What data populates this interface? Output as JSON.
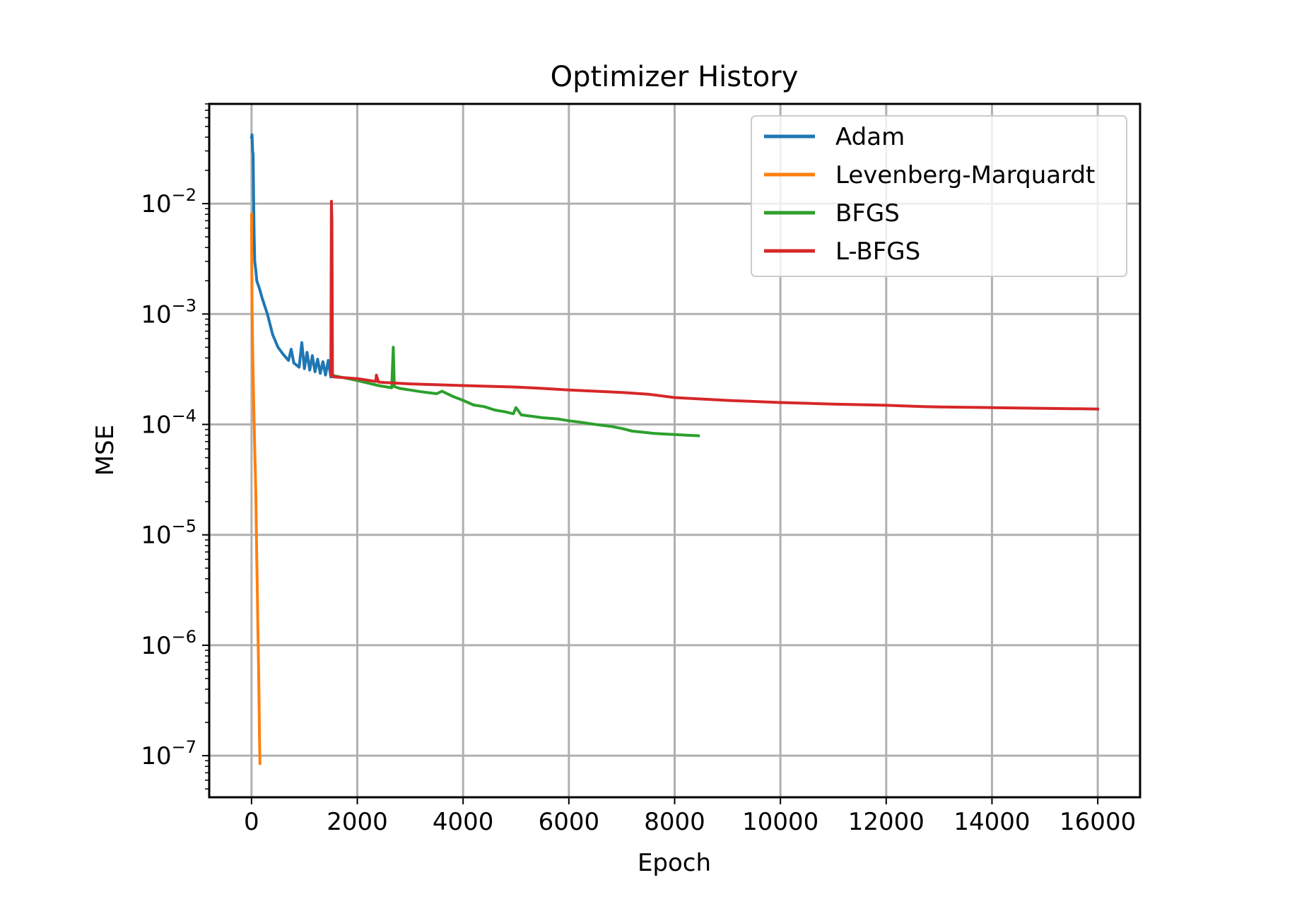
{
  "chart_data": {
    "type": "line",
    "title": "Optimizer History",
    "xlabel": "Epoch",
    "ylabel": "MSE",
    "xlim": [
      -800,
      16800
    ],
    "ylim": [
      4.2e-08,
      0.08
    ],
    "yscale": "log",
    "grid": true,
    "legend_position": "top-right",
    "x_ticks": [
      0,
      2000,
      4000,
      6000,
      8000,
      10000,
      12000,
      14000,
      16000
    ],
    "x_tick_labels": [
      "0",
      "2000",
      "4000",
      "6000",
      "8000",
      "10000",
      "12000",
      "14000",
      "16000"
    ],
    "y_ticks": [
      {
        "value": 0.01,
        "base": "10",
        "exp": "−2"
      },
      {
        "value": 0.001,
        "base": "10",
        "exp": "−3"
      },
      {
        "value": 0.0001,
        "base": "10",
        "exp": "−4"
      },
      {
        "value": 1e-05,
        "base": "10",
        "exp": "−5"
      },
      {
        "value": 1e-06,
        "base": "10",
        "exp": "−6"
      },
      {
        "value": 1e-07,
        "base": "10",
        "exp": "−7"
      }
    ],
    "series": [
      {
        "name": "Adam",
        "color": "#1f77b4",
        "x": [
          0,
          10,
          20,
          30,
          40,
          50,
          60,
          80,
          100,
          150,
          200,
          300,
          400,
          500,
          600,
          700,
          750,
          800,
          900,
          950,
          1000,
          1050,
          1100,
          1150,
          1200,
          1250,
          1300,
          1350,
          1400,
          1450,
          1500
        ],
        "y": [
          0.04,
          0.042,
          0.03,
          0.028,
          0.01,
          0.005,
          0.003,
          0.0025,
          0.002,
          0.0017,
          0.0014,
          0.001,
          0.00065,
          0.0005,
          0.00043,
          0.00038,
          0.00048,
          0.00036,
          0.00033,
          0.00055,
          0.00032,
          0.00045,
          0.00031,
          0.00042,
          0.0003,
          0.00039,
          0.00029,
          0.00037,
          0.00028,
          0.00038,
          0.00027
        ]
      },
      {
        "name": "Levenberg-Marquardt",
        "color": "#ff7f0e",
        "x": [
          0,
          5,
          10,
          20,
          30,
          40,
          50,
          60,
          70,
          80,
          90,
          100,
          110,
          120,
          130,
          140,
          150,
          160
        ],
        "y": [
          0.008,
          0.003,
          0.0012,
          0.0005,
          0.00028,
          0.00016,
          0.0001,
          6e-05,
          4e-05,
          2.5e-05,
          1.2e-05,
          6e-06,
          3e-06,
          1.5e-06,
          8e-07,
          4e-07,
          1.5e-07,
          8.5e-08
        ]
      },
      {
        "name": "BFGS",
        "color": "#2ca02c",
        "x": [
          1500,
          2000,
          2400,
          2650,
          2680,
          2700,
          2800,
          3000,
          3200,
          3500,
          3600,
          3800,
          4000,
          4200,
          4400,
          4600,
          4800,
          4950,
          5000,
          5100,
          5500,
          5800,
          6000,
          6200,
          6500,
          6800,
          7000,
          7200,
          7400,
          7600,
          7800,
          8000,
          8200,
          8450
        ],
        "y": [
          0.00028,
          0.00025,
          0.000225,
          0.000215,
          0.0005,
          0.00022,
          0.000212,
          0.000205,
          0.000198,
          0.00019,
          0.0002,
          0.00018,
          0.000165,
          0.00015,
          0.000145,
          0.000135,
          0.00013,
          0.000125,
          0.000142,
          0.000122,
          0.000115,
          0.000112,
          0.000108,
          0.000105,
          0.0001,
          9.6e-05,
          9.2e-05,
          8.7e-05,
          8.5e-05,
          8.3e-05,
          8.2e-05,
          8.1e-05,
          8e-05,
          7.9e-05
        ]
      },
      {
        "name": "L-BFGS",
        "color": "#d62728",
        "x": [
          1500,
          1510,
          1520,
          1530,
          1540,
          2000,
          2350,
          2360,
          2400,
          2500,
          3000,
          4000,
          5000,
          5500,
          6000,
          6500,
          7000,
          7500,
          8000,
          9000,
          10000,
          11000,
          12000,
          12700,
          13000,
          14000,
          15000,
          16000
        ],
        "y": [
          0.00028,
          0.0105,
          0.007,
          0.00029,
          0.00027,
          0.00026,
          0.000245,
          0.00028,
          0.000242,
          0.00024,
          0.000233,
          0.000225,
          0.000218,
          0.000212,
          0.000205,
          0.0002,
          0.000195,
          0.000188,
          0.000175,
          0.000165,
          0.000158,
          0.000153,
          0.000149,
          0.000145,
          0.000144,
          0.000142,
          0.00014,
          0.000138
        ]
      }
    ]
  }
}
